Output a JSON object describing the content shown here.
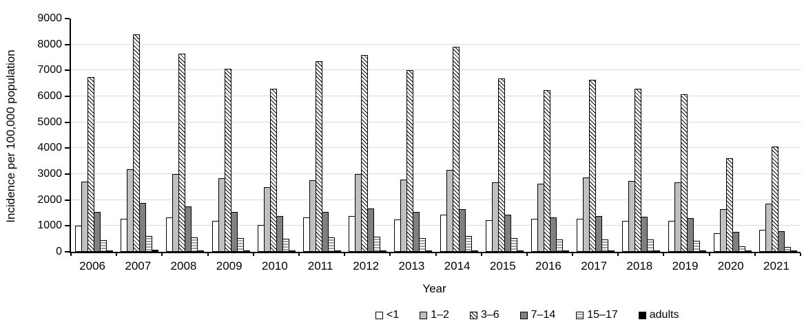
{
  "chart_data": {
    "type": "bar",
    "title": "",
    "xlabel": "Year",
    "ylabel": "Incidence per 100,000 population",
    "ylim": [
      0,
      9000
    ],
    "ytick_step": 1000,
    "grid": true,
    "legend_position": "bottom",
    "categories": [
      "2006",
      "2007",
      "2008",
      "2009",
      "2010",
      "2011",
      "2012",
      "2013",
      "2014",
      "2015",
      "2016",
      "2017",
      "2018",
      "2019",
      "2020",
      "2021"
    ],
    "series": [
      {
        "name": "<1",
        "values": [
          1000,
          1270,
          1320,
          1190,
          1040,
          1330,
          1380,
          1260,
          1440,
          1210,
          1280,
          1270,
          1190,
          1200,
          730,
          840
        ]
      },
      {
        "name": "1–2",
        "values": [
          2700,
          3180,
          3000,
          2850,
          2500,
          2750,
          3000,
          2800,
          3150,
          2680,
          2640,
          2860,
          2730,
          2670,
          1640,
          1850
        ]
      },
      {
        "name": "3–6",
        "values": [
          6750,
          8400,
          7650,
          7050,
          6300,
          7350,
          7600,
          7000,
          7900,
          6700,
          6250,
          6650,
          6300,
          6080,
          3600,
          4050
        ]
      },
      {
        "name": "7–14",
        "values": [
          1550,
          1880,
          1760,
          1530,
          1370,
          1550,
          1680,
          1530,
          1650,
          1440,
          1340,
          1380,
          1350,
          1290,
          760,
          790
        ]
      },
      {
        "name": "15–17",
        "values": [
          450,
          600,
          560,
          540,
          500,
          550,
          590,
          540,
          620,
          520,
          470,
          490,
          480,
          430,
          220,
          190
        ]
      },
      {
        "name": "adults",
        "values": [
          60,
          70,
          60,
          60,
          60,
          60,
          60,
          60,
          60,
          60,
          60,
          60,
          60,
          60,
          40,
          40
        ]
      }
    ],
    "series_styles": [
      {
        "fill": "#ffffff",
        "pattern": "solid"
      },
      {
        "fill": "#c0c0c0",
        "pattern": "solid"
      },
      {
        "fill": "#ffffff",
        "pattern": "diagonal-hatch",
        "pattern_color": "#000000"
      },
      {
        "fill": "#808080",
        "pattern": "solid"
      },
      {
        "fill": "#ffffff",
        "pattern": "horizontal-stripes",
        "pattern_color": "#a0a0a0"
      },
      {
        "fill": "#000000",
        "pattern": "solid"
      }
    ],
    "colors": {
      "gridline": "#d9d9d9",
      "axis": "#000000",
      "text": "#000000"
    }
  }
}
